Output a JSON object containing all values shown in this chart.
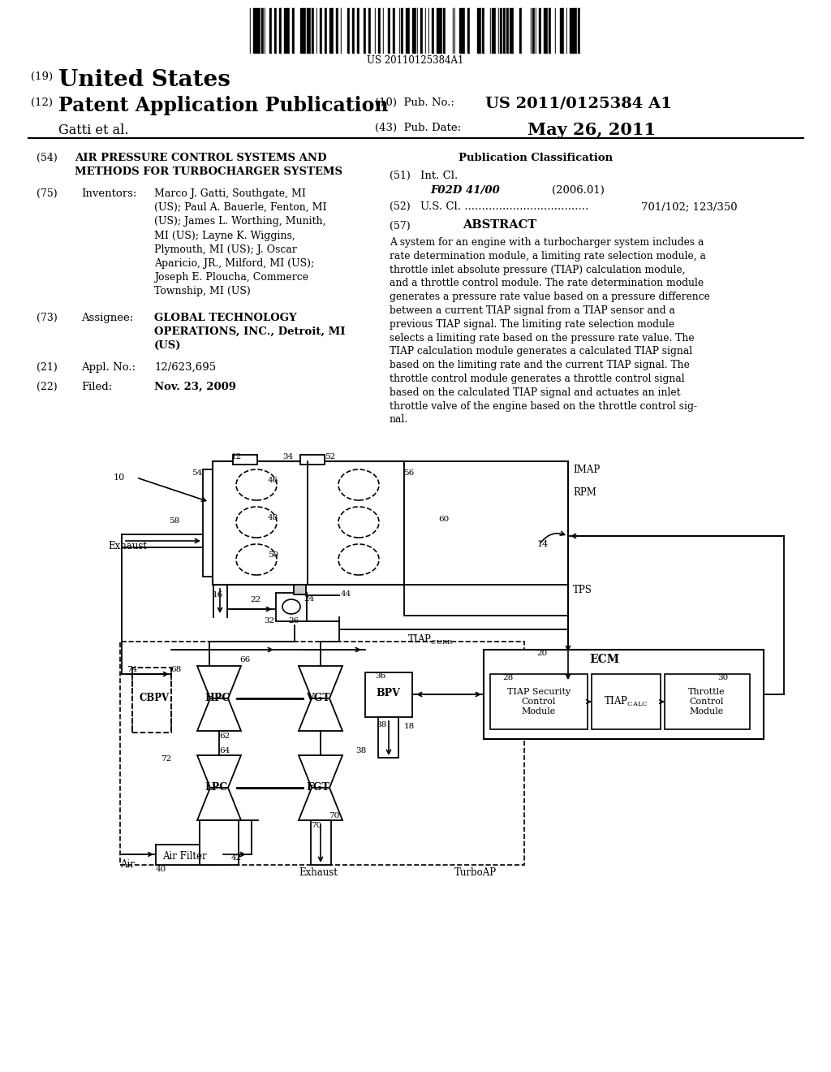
{
  "bg": "#ffffff",
  "barcode_number": "US 20110125384A1",
  "header": {
    "country": "United States",
    "pub_type": "Patent Application Publication",
    "gatti": "Gatti et al.",
    "pub_no_label": "(10)  Pub. No.:",
    "pub_no": "US 2011/0125384 A1",
    "pub_date_label": "(43)  Pub. Date:",
    "pub_date": "May 26, 2011"
  },
  "left_col": {
    "title_num": "(54)",
    "title": "AIR PRESSURE CONTROL SYSTEMS AND\nMETHODS FOR TURBOCHARGER SYSTEMS",
    "inv_num": "(75)",
    "inv_label": "Inventors:",
    "inventors": "Marco J. Gatti, Southgate, MI\n(US); Paul A. Bauerle, Fenton, MI\n(US); James L. Worthing, Munith,\nMI (US); Layne K. Wiggins,\nPlymouth, MI (US); J. Oscar\nAparicio, JR., Milford, MI (US);\nJoseph E. Ploucha, Commerce\nTownship, MI (US)",
    "asgn_num": "(73)",
    "asgn_label": "Assignee:",
    "assignee": "GLOBAL TECHNOLOGY\nOPERATIONS, INC., Detroit, MI\n(US)",
    "appl_num": "(21)",
    "appl_label": "Appl. No.:",
    "appl_no": "12/623,695",
    "filed_num": "(22)",
    "filed_label": "Filed:",
    "filed_date": "Nov. 23, 2009"
  },
  "right_col": {
    "pub_class": "Publication Classification",
    "int_cl_num": "(51)",
    "int_cl_label": "Int. Cl.",
    "int_cl_code": "F02D 41/00",
    "int_cl_year": "(2006.01)",
    "us_cl_num": "(52)",
    "us_cl_label": "U.S. Cl. ....................................",
    "us_cl_val": "701/102; 123/350",
    "abs_num": "(57)",
    "abs_header": "ABSTRACT",
    "abstract": "A system for an engine with a turbocharger system includes a rate determination module, a limiting rate selection module, a throttle inlet absolute pressure (TIAP) calculation module, and a throttle control module. The rate determination module generates a pressure rate value based on a pressure difference between a current TIAP signal from a TIAP sensor and a previous TIAP signal. The limiting rate selection module selects a limiting rate based on the pressure rate value. The TIAP calculation module generates a calculated TIAP signal based on the limiting rate and the current TIAP signal. The throttle control module generates a throttle control signal based on the calculated TIAP signal and actuates an inlet throttle valve of the engine based on the throttle control signal."
  }
}
